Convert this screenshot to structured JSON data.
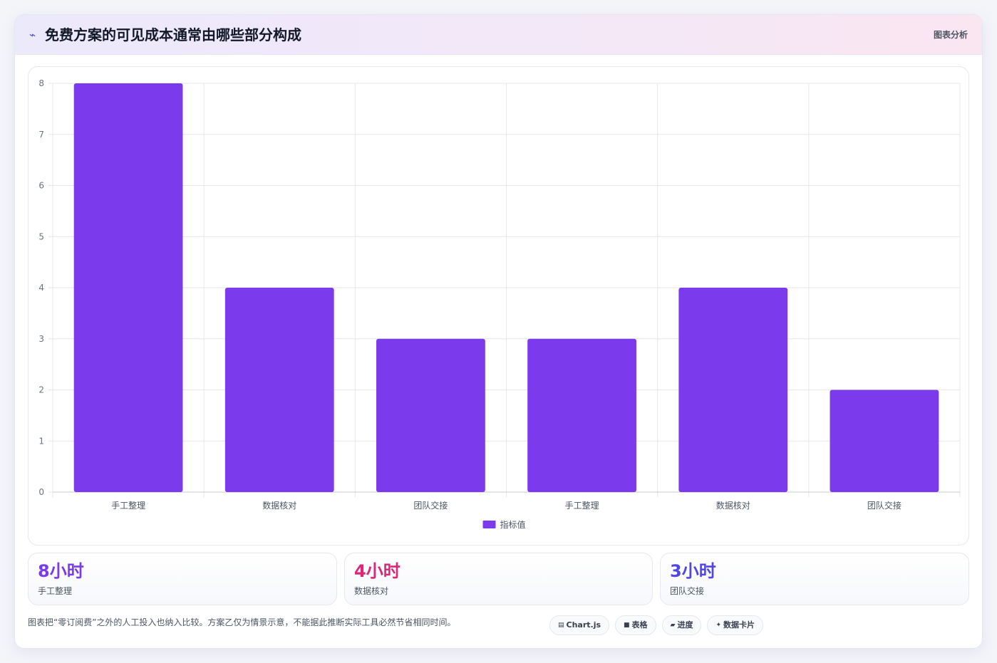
{
  "header": {
    "icon": "chart-icon",
    "title": "免费方案的可见成本通常由哪些部分构成",
    "action_label": "图表分析"
  },
  "chart_data": {
    "type": "bar",
    "title": "",
    "xlabel": "",
    "ylabel": "",
    "categories": [
      "手工整理",
      "数据核对",
      "团队交接",
      "手工整理",
      "数据核对",
      "团队交接"
    ],
    "series": [
      {
        "name": "指标值",
        "values": [
          8,
          4,
          3,
          3,
          4,
          2
        ]
      }
    ],
    "ylim": [
      0,
      8
    ],
    "yticks": [
      0,
      1,
      2,
      3,
      4,
      5,
      6,
      7,
      8
    ],
    "grid": true,
    "legend": "bottom",
    "bar_color": "#7c3aed"
  },
  "stats": [
    {
      "value": "8小时",
      "label": "手工整理",
      "color": "#7c3aed"
    },
    {
      "value": "4小时",
      "label": "数据核对",
      "color": "#db2777"
    },
    {
      "value": "3小时",
      "label": "团队交接",
      "color": "#4f46e5"
    }
  ],
  "footnote": "图表把“零订阅费”之外的人工投入也纳入比较。方案乙仅为情景示意，不能据此推断实际工具必然节省相同时间。",
  "chips": [
    {
      "icon": "chart-icon",
      "glyph": "▤",
      "label": "Chart.js"
    },
    {
      "icon": "table-icon",
      "glyph": "■",
      "label": "表格"
    },
    {
      "icon": "progress-icon",
      "glyph": "▰",
      "label": "进度"
    },
    {
      "icon": "sparkle-icon",
      "glyph": "✦",
      "label": "数据卡片"
    }
  ]
}
